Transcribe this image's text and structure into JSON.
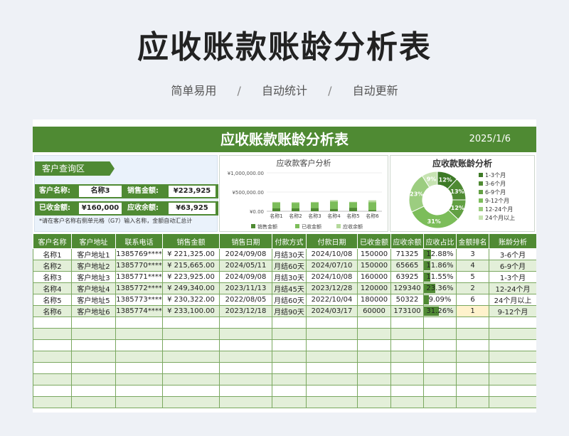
{
  "hero": {
    "title": "应收账款账龄分析表",
    "features": [
      "简单易用",
      "自动统计",
      "自动更新"
    ],
    "separator": "/"
  },
  "banner": {
    "title": "应收账款账龄分析表",
    "date": "2025/1/6"
  },
  "query": {
    "tab": "客户查询区",
    "customer_label": "客户名称:",
    "customer_value": "名称3",
    "sales_label": "销售金额:",
    "sales_value": "¥223,925",
    "received_label": "已收金额:",
    "received_value": "¥160,000",
    "balance_label": "应收余额:",
    "balance_value": "¥63,925",
    "note": "*请在客户名称右侧单元格（G7）输入名称，金额自动汇总计"
  },
  "colors": {
    "green": "#4f8a33",
    "mid_green": "#7cbd5a",
    "light_green": "#b5d99c",
    "pale": "#e3efd9"
  },
  "chart_data": [
    {
      "type": "bar",
      "title": "应收款客户分析",
      "categories": [
        "名称1",
        "名称2",
        "名称3",
        "名称4",
        "名称5",
        "名称6"
      ],
      "series": [
        {
          "name": "销售金额",
          "values": [
            221325,
            215665,
            223925,
            249340,
            230322,
            233100
          ]
        },
        {
          "name": "已收金额",
          "values": [
            150000,
            150000,
            160000,
            120000,
            180000,
            60000
          ]
        },
        {
          "name": "应收余额",
          "values": [
            71325,
            65665,
            63925,
            129340,
            50322,
            173100
          ]
        }
      ],
      "yticks": [
        "¥1,000,000.00",
        "¥500,000.00",
        "¥0.00"
      ],
      "ylim": [
        0,
        1000000
      ],
      "legend": "bottom"
    },
    {
      "type": "pie",
      "title": "应收款账龄分析",
      "labels": [
        "1-3个月",
        "3-6个月",
        "6-9个月",
        "9-12个月",
        "12-24个月",
        "24个月以上"
      ],
      "values": [
        12,
        13,
        12,
        31,
        23,
        9
      ],
      "value_labels": [
        "12%",
        "13%",
        "12%",
        "31%",
        "23%",
        "9%"
      ],
      "slice_colors": [
        "#3d7a26",
        "#4f8a33",
        "#62a043",
        "#7cbd5a",
        "#9ccd80",
        "#c6e3b1"
      ],
      "legend": "right"
    }
  ],
  "table": {
    "headers": [
      "客户名称",
      "客户地址",
      "联系电话",
      "销售金额",
      "销售日期",
      "付款方式",
      "付款日期",
      "已收金额",
      "应收余额",
      "应收占比",
      "金额排名",
      "账龄分析"
    ],
    "rows": [
      [
        "名称1",
        "客户地址1",
        "1385769****",
        "¥ 221,325.00",
        "2024/09/08",
        "月结30天",
        "2024/10/08",
        "150000",
        "71325",
        "12.88%",
        "3",
        "3-6个月"
      ],
      [
        "名称2",
        "客户地址2",
        "1385770****",
        "¥ 215,665.00",
        "2024/05/11",
        "月结60天",
        "2024/07/10",
        "150000",
        "65665",
        "11.86%",
        "4",
        "6-9个月"
      ],
      [
        "名称3",
        "客户地址3",
        "1385771****",
        "¥ 223,925.00",
        "2024/09/08",
        "月结30天",
        "2024/10/08",
        "160000",
        "63925",
        "11.55%",
        "5",
        "1-3个月"
      ],
      [
        "名称4",
        "客户地址4",
        "1385772****",
        "¥ 249,340.00",
        "2023/11/13",
        "月结45天",
        "2023/12/28",
        "120000",
        "129340",
        "23.36%",
        "2",
        "12-24个月"
      ],
      [
        "名称5",
        "客户地址5",
        "1385773****",
        "¥ 230,322.00",
        "2022/08/05",
        "月结60天",
        "2022/10/04",
        "180000",
        "50322",
        "9.09%",
        "6",
        "24个月以上"
      ],
      [
        "名称6",
        "客户地址6",
        "1385774****",
        "¥ 233,100.00",
        "2023/12/18",
        "月结90天",
        "2024/03/17",
        "60000",
        "173100",
        "31.26%",
        "1",
        "9-12个月"
      ]
    ],
    "pct_fractions": [
      0.1288,
      0.1186,
      0.1155,
      0.2336,
      0.0909,
      0.3126
    ]
  }
}
